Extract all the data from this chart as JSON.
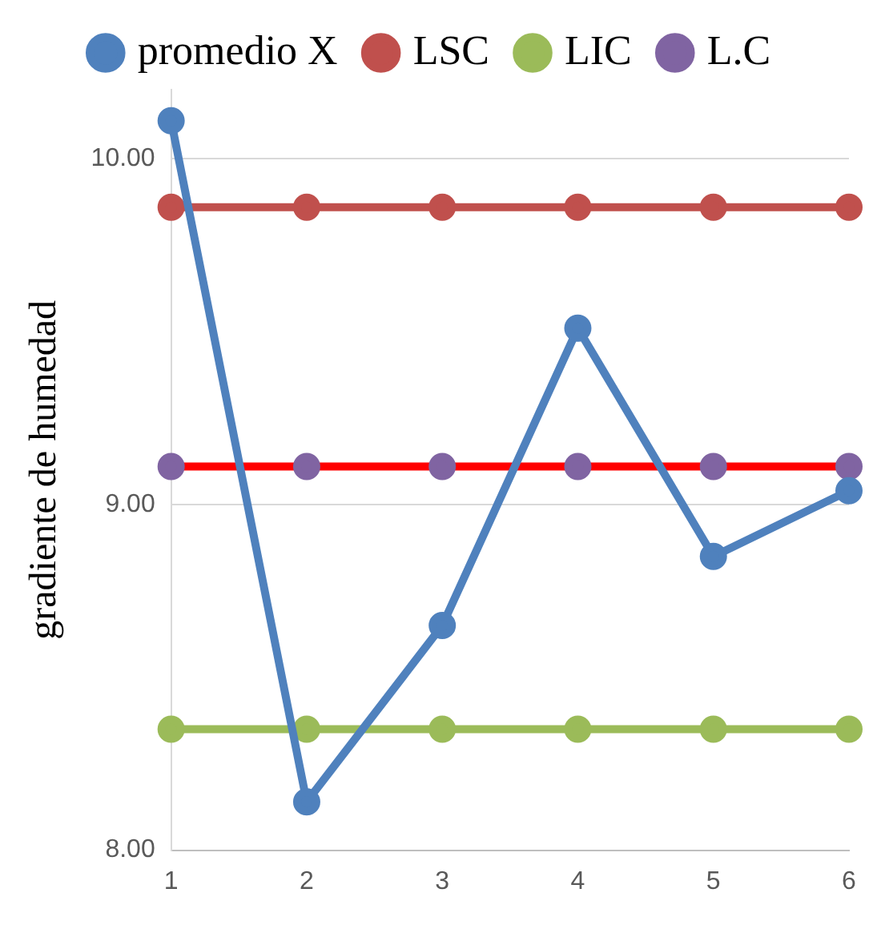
{
  "chart_data": {
    "type": "line",
    "ylabel": "gradiente de humedad",
    "categories": [
      "1",
      "2",
      "3",
      "4",
      "5",
      "6"
    ],
    "series": [
      {
        "name": "promedio X",
        "color": "#4f81bd",
        "values": [
          10.11,
          8.14,
          8.65,
          9.51,
          8.85,
          9.04
        ]
      },
      {
        "name": "LSC",
        "color": "#c0504d",
        "values": [
          9.86,
          9.86,
          9.86,
          9.86,
          9.86,
          9.86
        ]
      },
      {
        "name": "LIC",
        "color": "#9bbb59",
        "values": [
          8.35,
          8.35,
          8.35,
          8.35,
          8.35,
          8.35
        ]
      },
      {
        "name": "L.C",
        "color": "#ff0000",
        "colors": [
          "#8064a2",
          "#8064a2",
          "#8064a2",
          "#8064a2",
          "#8064a2",
          "#8064a2"
        ],
        "values": [
          9.11,
          9.11,
          9.11,
          9.11,
          9.11,
          9.11
        ]
      }
    ],
    "ylim": [
      8,
      10.2
    ],
    "yticks": [
      {
        "value": 8,
        "label": "8.00"
      },
      {
        "value": 9,
        "label": "9.00"
      },
      {
        "value": 10,
        "label": "10.00"
      }
    ],
    "grid": "y",
    "legend": "top",
    "marker": "circle",
    "line_style": "solid"
  }
}
